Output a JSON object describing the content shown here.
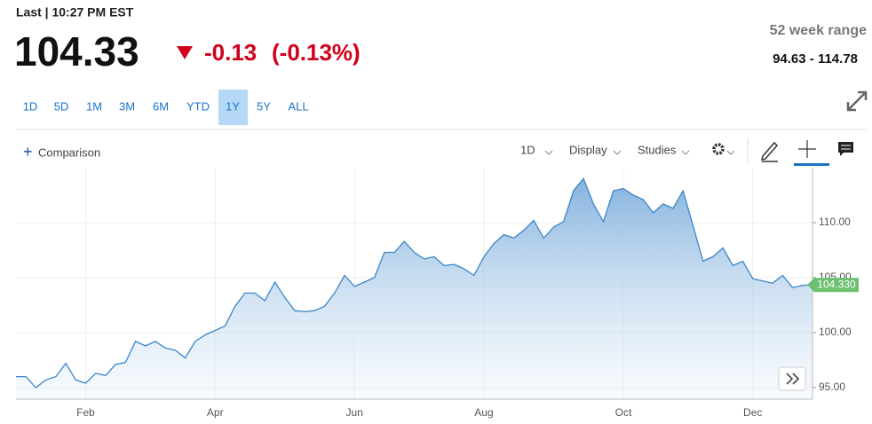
{
  "header": {
    "last_time": "Last | 10:27 PM EST",
    "price": "104.33",
    "change": "-0.13",
    "change_percent": "(-0.13%)",
    "range_title": "52 week range",
    "range_value": "94.63 - 114.78"
  },
  "ranges": {
    "buttons": [
      "1D",
      "5D",
      "1M",
      "3M",
      "6M",
      "YTD",
      "1Y",
      "5Y",
      "ALL"
    ],
    "selected": "1Y"
  },
  "toolbar": {
    "comparison": "Comparison",
    "interval": "1D",
    "display": "Display",
    "studies": "Studies"
  },
  "chart_data": {
    "type": "area",
    "color": "#3a86c8",
    "categories": [
      null,
      null,
      null,
      null,
      null,
      null,
      null,
      "Feb",
      null,
      null,
      null,
      null,
      null,
      null,
      null,
      null,
      null,
      null,
      null,
      null,
      "Apr",
      null,
      null,
      null,
      null,
      null,
      null,
      null,
      null,
      null,
      null,
      null,
      null,
      null,
      "Jun",
      null,
      null,
      null,
      null,
      null,
      null,
      null,
      null,
      null,
      null,
      null,
      null,
      "Aug",
      null,
      null,
      null,
      null,
      null,
      null,
      null,
      null,
      null,
      null,
      null,
      null,
      null,
      "Oct",
      null,
      null,
      null,
      null,
      null,
      null,
      null,
      null,
      null,
      null,
      null,
      null,
      "Dec",
      null,
      null,
      null,
      null,
      null,
      null
    ],
    "values": [
      96.0,
      96.0,
      95.0,
      95.7,
      96.0,
      97.2,
      95.7,
      95.4,
      96.3,
      96.1,
      97.1,
      97.3,
      99.2,
      98.8,
      99.2,
      98.6,
      98.4,
      97.7,
      99.2,
      99.8,
      100.2,
      100.6,
      102.4,
      103.6,
      103.6,
      102.9,
      104.6,
      103.2,
      102.0,
      101.9,
      102.0,
      102.4,
      103.6,
      105.2,
      104.2,
      104.6,
      105.0,
      107.3,
      107.3,
      108.3,
      107.3,
      106.7,
      106.9,
      106.1,
      106.2,
      105.8,
      105.2,
      106.9,
      108.1,
      108.9,
      108.6,
      109.3,
      110.2,
      108.6,
      109.6,
      110.1,
      112.9,
      114.0,
      111.7,
      110.1,
      112.9,
      113.1,
      112.5,
      112.1,
      110.9,
      111.7,
      111.3,
      112.9,
      109.7,
      106.5,
      106.9,
      107.7,
      106.1,
      106.5,
      104.9,
      104.7,
      104.5,
      105.2,
      104.1,
      104.3,
      104.33
    ],
    "ylim": [
      93.95,
      114.92
    ],
    "yticks": [
      {
        "value": 95,
        "label": "95.00"
      },
      {
        "value": 100,
        "label": "100.00"
      },
      {
        "value": 105,
        "label": "105.00"
      },
      {
        "value": 110,
        "label": "110.00"
      }
    ],
    "last_price": {
      "value": 104.33,
      "label": "104.330",
      "color": "#6cc070"
    },
    "grid": true
  }
}
